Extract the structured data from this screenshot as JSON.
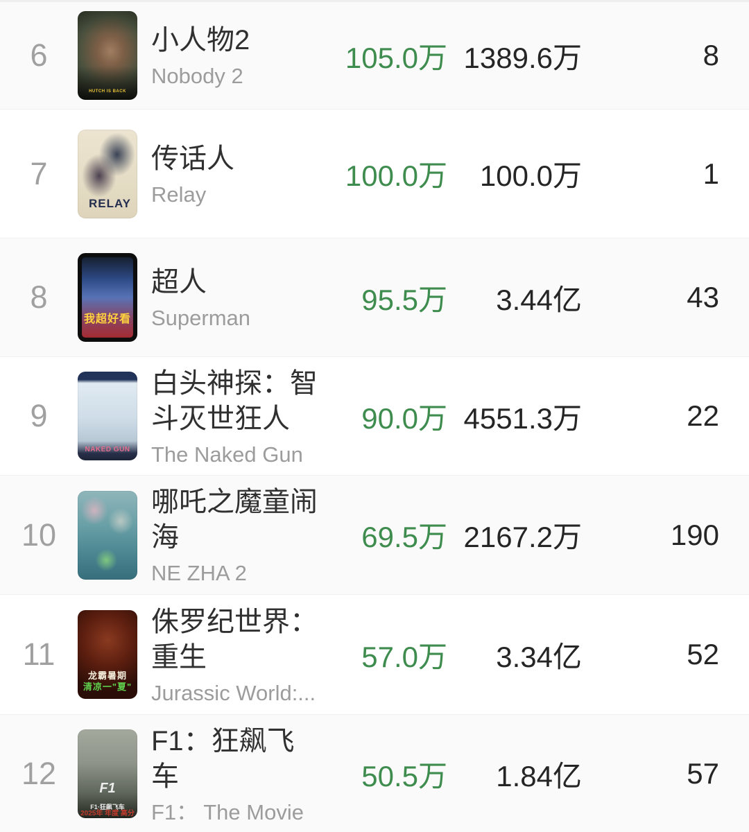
{
  "theme": {
    "accent_green": "#3f8c4f",
    "row_bg": "#ffffff",
    "row_alt_bg": "#fafafa",
    "rank_color": "#a0a0a0",
    "title_color": "#303030",
    "subtitle_color": "#9c9c9c",
    "number_color": "#252525"
  },
  "list": {
    "rows": [
      {
        "rank": "6",
        "title": "小人物2",
        "subtitle": "Nobody 2",
        "daily": "105.0万",
        "total": "1389.6万",
        "days": "8",
        "poster_caption": "HUTCH IS BACK"
      },
      {
        "rank": "7",
        "title": "传话人",
        "subtitle": "Relay",
        "daily": "100.0万",
        "total": "100.0万",
        "days": "1",
        "poster_caption": "RELAY"
      },
      {
        "rank": "8",
        "title": "超人",
        "subtitle": "Superman",
        "daily": "95.5万",
        "total": "3.44亿",
        "days": "43",
        "poster_caption": "我超好看"
      },
      {
        "rank": "9",
        "title": "白头神探：智斗灭世狂人",
        "subtitle": "The Naked Gun",
        "daily": "90.0万",
        "total": "4551.3万",
        "days": "22",
        "poster_caption": "NAKED GUN"
      },
      {
        "rank": "10",
        "title": "哪吒之魔童闹海",
        "subtitle": "NE ZHA 2",
        "daily": "69.5万",
        "total": "2167.2万",
        "days": "190"
      },
      {
        "rank": "11",
        "title": "侏罗纪世界：重生",
        "subtitle": "Jurassic World:...",
        "daily": "57.0万",
        "total": "3.34亿",
        "days": "52",
        "poster_caption_1": "龙霸暑期",
        "poster_caption_2": "清凉一\"夏\""
      },
      {
        "rank": "12",
        "title": "F1：狂飙飞车",
        "subtitle": "F1： The Movie",
        "daily": "50.5万",
        "total": "1.84亿",
        "days": "57",
        "poster_logo": "F1",
        "poster_caption_top": "2025年 年度 高分",
        "poster_caption": "F1·狂飙飞车"
      }
    ]
  }
}
